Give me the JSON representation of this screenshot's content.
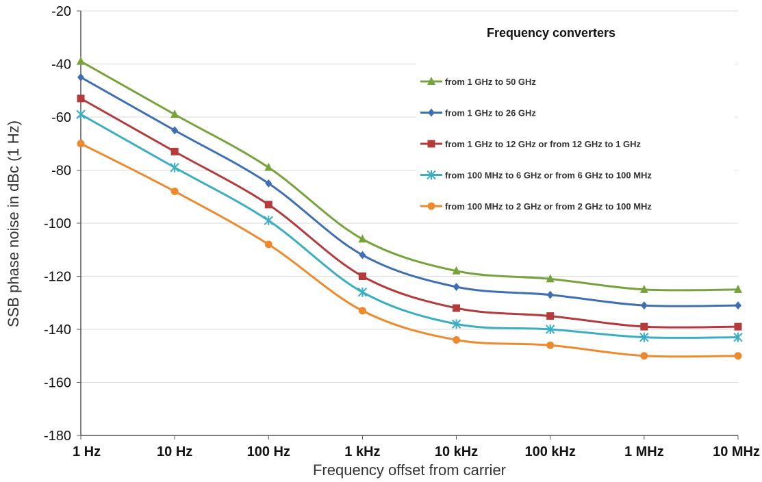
{
  "chart_data": {
    "type": "line",
    "xlabel": "Frequency offset from carrier",
    "ylabel": "SSB phase noise in dBc (1 Hz)",
    "x_scale": "log",
    "categories": [
      "1 Hz",
      "10 Hz",
      "100 Hz",
      "1 kHz",
      "10 kHz",
      "100 kHz",
      "1 MHz",
      "10 MHz"
    ],
    "ylim": [
      -180,
      -20
    ],
    "yticks": [
      -20,
      -40,
      -60,
      -80,
      -100,
      -120,
      -140,
      -160,
      -180
    ],
    "grid": "horizontal",
    "legend_title": "Frequency converters",
    "legend_position": "top-right",
    "series": [
      {
        "name": "from 1 GHz to 50 GHz",
        "color": "#77a33c",
        "marker": "triangle",
        "values": [
          -39,
          -59,
          -79,
          -106,
          -118,
          -121,
          -125,
          -125
        ]
      },
      {
        "name": "from 1 GHz to 26 GHz",
        "color": "#3f6fb3",
        "marker": "diamond",
        "values": [
          -45,
          -65,
          -85,
          -112,
          -124,
          -127,
          -131,
          -131
        ]
      },
      {
        "name": "from 1 GHz to 12 GHz or from 12 GHz to 1 GHz",
        "color": "#b33b3b",
        "marker": "square",
        "values": [
          -53,
          -73,
          -93,
          -120,
          -132,
          -135,
          -139,
          -139
        ]
      },
      {
        "name": "from 100 MHz to 6 GHz or from 6 GHz to 100 MHz",
        "color": "#3aaec2",
        "marker": "star",
        "values": [
          -59,
          -79,
          -99,
          -126,
          -138,
          -140,
          -143,
          -143
        ]
      },
      {
        "name": "from 100 MHz to 2 GHz or from 2 GHz to 100 MHz",
        "color": "#ed8a2e",
        "marker": "circle",
        "values": [
          -70,
          -88,
          -108,
          -133,
          -144,
          -146,
          -150,
          -150
        ]
      }
    ]
  }
}
